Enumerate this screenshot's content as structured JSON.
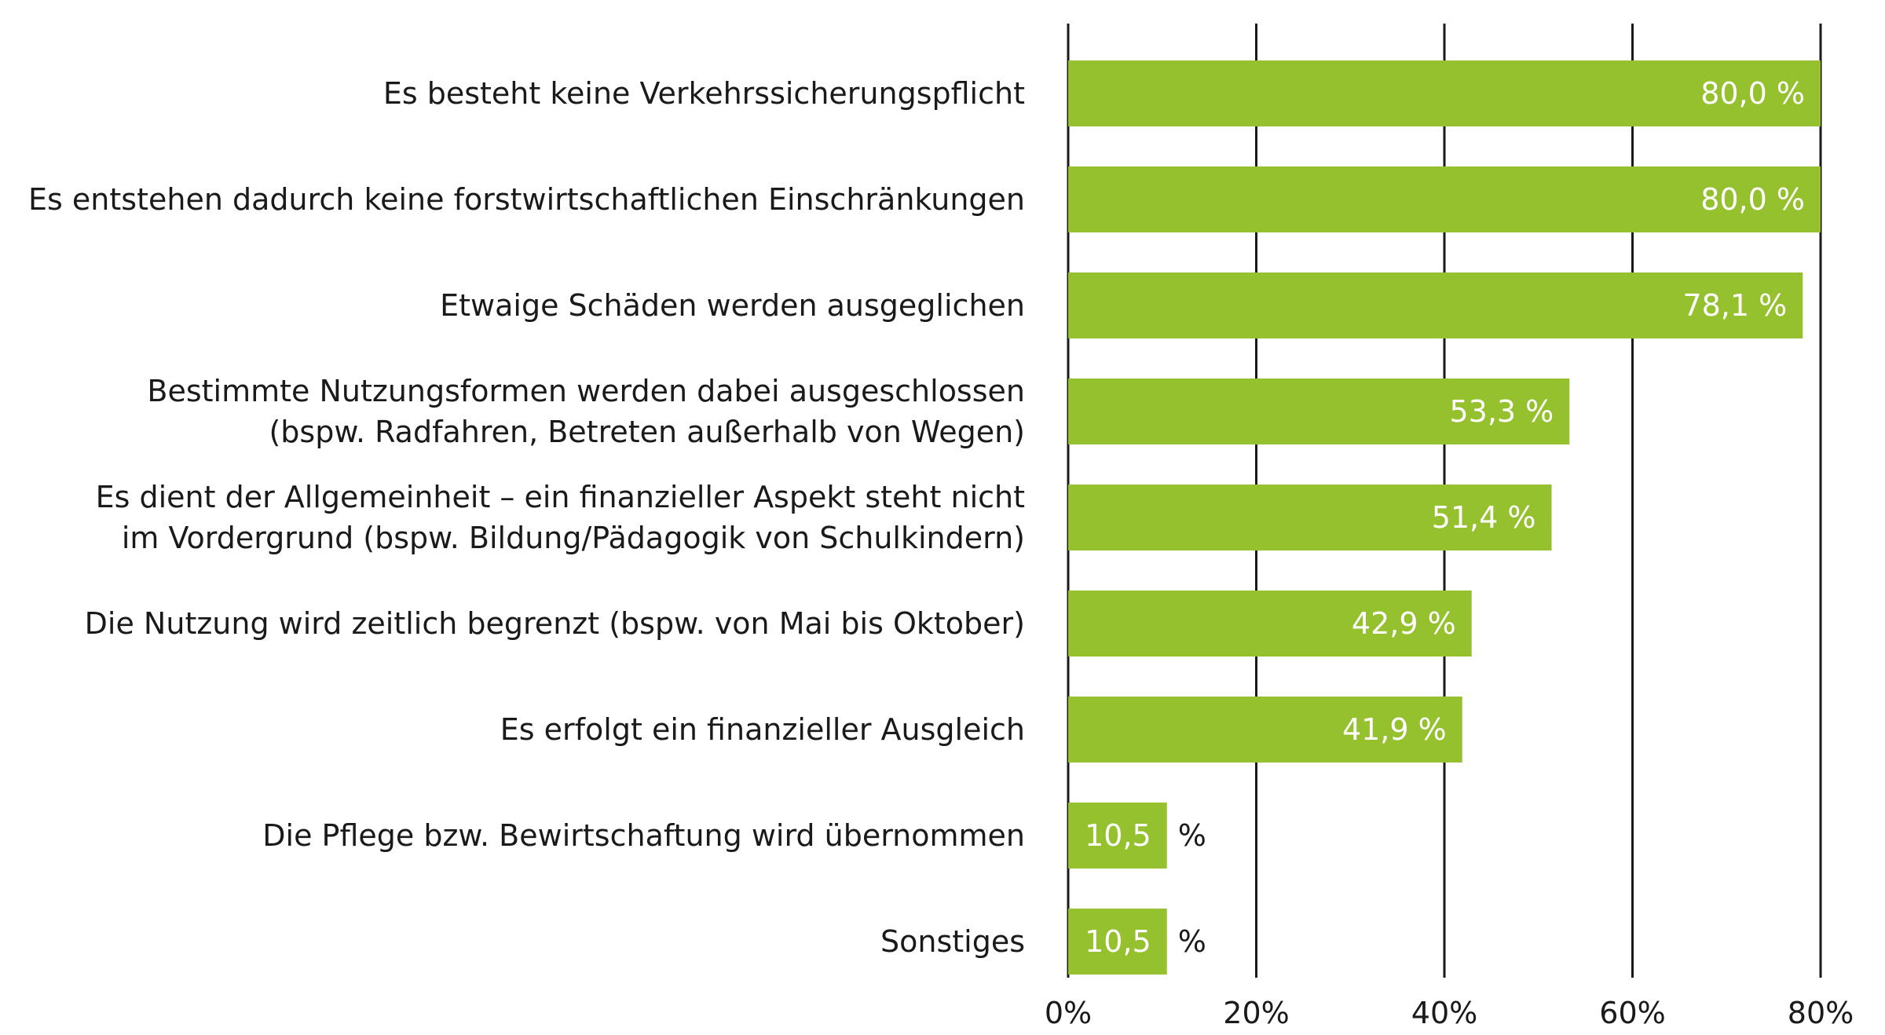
{
  "chart_data": {
    "type": "bar",
    "orientation": "horizontal",
    "title": "",
    "xlabel": "",
    "ylabel": "",
    "xlim": [
      0,
      80
    ],
    "grid": true,
    "categories": [
      [
        "Es besteht keine Verkehrssicherungspflicht"
      ],
      [
        "Es entstehen dadurch keine forstwirtschaftlichen Einschränkungen"
      ],
      [
        "Etwaige Schäden werden ausgeglichen"
      ],
      [
        "Bestimmte Nutzungsformen werden dabei ausgeschlossen",
        "(bspw. Radfahren, Betreten außerhalb von Wegen)"
      ],
      [
        "Es dient der Allgemeinheit – ein finanzieller Aspekt steht nicht",
        "im Vordergrund (bspw. Bildung/Pädagogik von Schulkindern)"
      ],
      [
        "Die Nutzung wird zeitlich begrenzt (bspw. von Mai bis Oktober)"
      ],
      [
        "Es erfolgt ein finanzieller Ausgleich"
      ],
      [
        "Die Pflege bzw. Bewirtschaftung wird übernommen"
      ],
      [
        "Sonstiges"
      ]
    ],
    "values": [
      80.0,
      80.0,
      78.1,
      53.3,
      51.4,
      42.9,
      41.9,
      10.5,
      10.5
    ],
    "value_labels": [
      "80,0 %",
      "80,0 %",
      "78,1 %",
      "53,3 %",
      "51,4 %",
      "42,9 %",
      "41,9 %",
      "10,5",
      "10,5"
    ],
    "value_suffix_outside": [
      "",
      "",
      "",
      "",
      "",
      "",
      "",
      "%",
      "%"
    ],
    "ticks": [
      0,
      20,
      40,
      60,
      80
    ],
    "tick_labels": [
      "0%",
      "20%",
      "40%",
      "60%",
      "80%"
    ],
    "colors": {
      "bar": "#95c12f",
      "bar_label": "#ffffff",
      "text": "#1a1a1a",
      "grid": "#1a1a1a"
    }
  }
}
